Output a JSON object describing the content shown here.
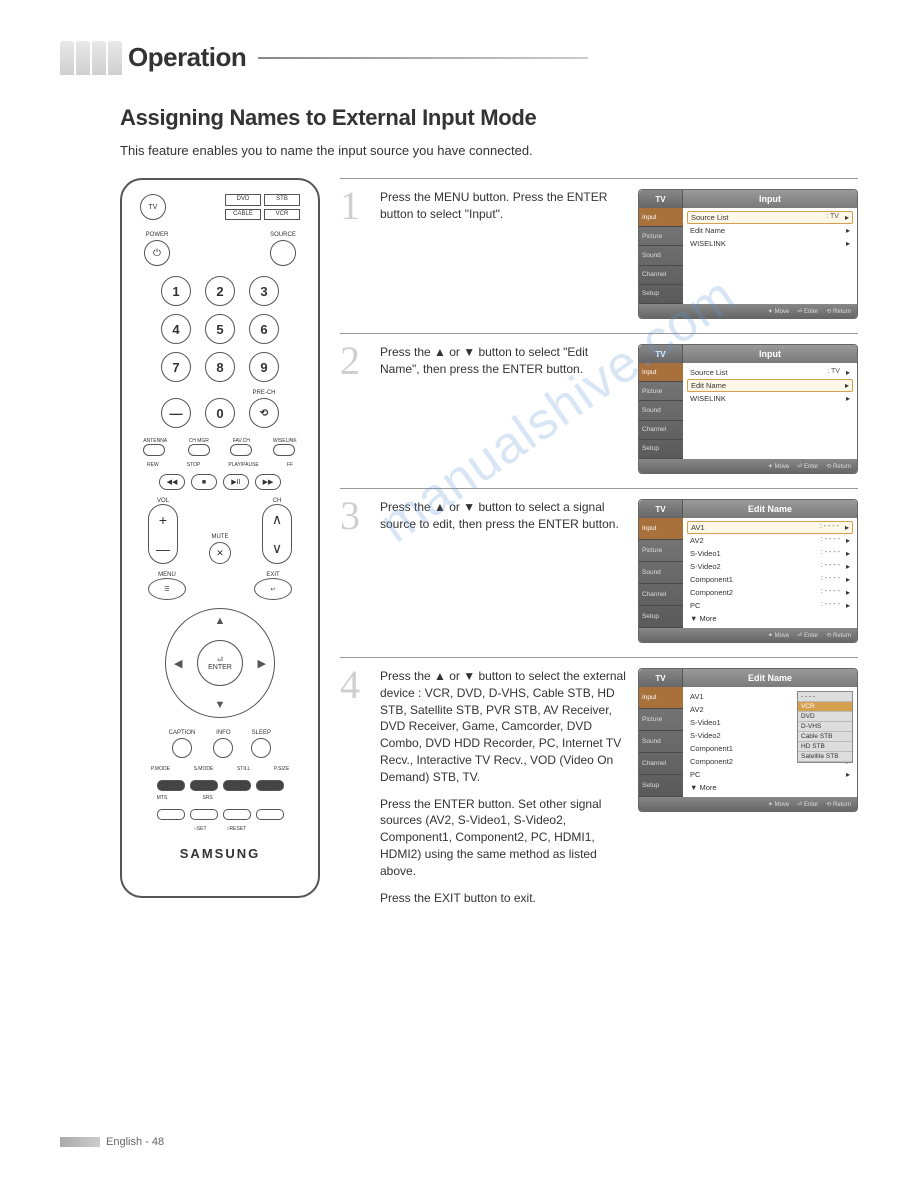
{
  "header": {
    "title": "Operation"
  },
  "subtitle": "Assigning Names to External Input Mode",
  "intro": "This feature enables you to name the input source you have connected.",
  "remote": {
    "tv": "TV",
    "labels": [
      "DVD",
      "STB",
      "CABLE",
      "VCR"
    ],
    "power_label": "POWER",
    "source_label": "SOURCE",
    "numbers": [
      "1",
      "2",
      "3",
      "4",
      "5",
      "6",
      "7",
      "8",
      "9"
    ],
    "dash": "—",
    "zero": "0",
    "prech_label": "PRE-CH",
    "tiny_labels": [
      "ANTENNA",
      "CH MGR",
      "FAV.CH",
      "WISELINK"
    ],
    "trans_labels": [
      "REW",
      "STOP",
      "PLAY/PAUSE",
      "FF"
    ],
    "trans_icons": [
      "◀◀",
      "■",
      "▶ⅠⅠ",
      "▶▶"
    ],
    "vol_label": "VOL",
    "ch_label": "CH",
    "mute_label": "MUTE",
    "menu": "MENU",
    "exit": "EXIT",
    "enter_symbol": "⏎",
    "enter": "ENTER",
    "cap_labels": [
      "CAPTION",
      "INFO",
      "SLEEP"
    ],
    "row_labels1": [
      "P.MODE",
      "S.MODE",
      "STILL",
      "P.SIZE"
    ],
    "row_labels2": [
      "MTS",
      "SRS",
      "",
      ""
    ],
    "set_label": "○SET",
    "reset_label": "○RESET",
    "brand": "SAMSUNG"
  },
  "steps": [
    {
      "num": "1",
      "text": "Press the MENU button. Press the ENTER button to select \"Input\".",
      "osd": {
        "title": "Input",
        "sidebar": [
          "Input",
          "Picture",
          "Sound",
          "Channel",
          "Setup"
        ],
        "active_side": 0,
        "rows": [
          {
            "label": "Source List",
            "value": ": TV",
            "sel": true
          },
          {
            "label": "Edit Name",
            "value": "",
            "sel": false
          },
          {
            "label": "WISELINK",
            "value": "",
            "sel": false
          }
        ],
        "footer": [
          "✦ Move",
          "⏎ Enter",
          "⟲ Return"
        ]
      }
    },
    {
      "num": "2",
      "text": "Press the ▲ or ▼ button to select \"Edit Name\", then press the ENTER button.",
      "osd": {
        "title": "Input",
        "sidebar": [
          "Input",
          "Picture",
          "Sound",
          "Channel",
          "Setup"
        ],
        "active_side": 0,
        "rows": [
          {
            "label": "Source List",
            "value": ": TV",
            "sel": false
          },
          {
            "label": "Edit Name",
            "value": "",
            "sel": true
          },
          {
            "label": "WISELINK",
            "value": "",
            "sel": false
          }
        ],
        "footer": [
          "✦ Move",
          "⏎ Enter",
          "⟲ Return"
        ]
      }
    },
    {
      "num": "3",
      "text": "Press the ▲ or ▼ button to select a signal source to edit, then press the ENTER button.",
      "osd": {
        "title": "Edit Name",
        "sidebar": [
          "Input",
          "Picture",
          "Sound",
          "Channel",
          "Setup"
        ],
        "active_side": 0,
        "rows": [
          {
            "label": "AV1",
            "value": ": - - - -",
            "sel": true
          },
          {
            "label": "AV2",
            "value": ": - - - -",
            "sel": false
          },
          {
            "label": "S-Video1",
            "value": ": - - - -",
            "sel": false
          },
          {
            "label": "S-Video2",
            "value": ": - - - -",
            "sel": false
          },
          {
            "label": "Component1",
            "value": ": - - - -",
            "sel": false
          },
          {
            "label": "Component2",
            "value": ": - - - -",
            "sel": false
          },
          {
            "label": "PC",
            "value": ": - - - -",
            "sel": false
          },
          {
            "label": "▼ More",
            "value": "",
            "sel": false
          }
        ],
        "footer": [
          "✦ Move",
          "⏎ Enter",
          "⟲ Return"
        ]
      }
    },
    {
      "num": "4",
      "text_parts": [
        "Press the ▲ or ▼ button to select the external device : VCR, DVD, D-VHS, Cable STB, HD STB, Satellite STB, PVR STB, AV Receiver, DVD Receiver, Game, Camcorder, DVD Combo, DVD HDD Recorder, PC, Internet TV Recv., Interactive TV Recv., VOD (Video On Demand) STB, TV.",
        "Press the ENTER button. Set other signal sources (AV2, S-Video1, S-Video2, Component1, Component2, PC, HDMI1, HDMI2) using the same method as listed above.",
        "Press the EXIT button to exit."
      ],
      "osd": {
        "title": "Edit Name",
        "sidebar": [
          "Input",
          "Picture",
          "Sound",
          "Channel",
          "Setup"
        ],
        "active_side": 0,
        "rows": [
          {
            "label": "AV1",
            "value": "",
            "sel": false
          },
          {
            "label": "AV2",
            "value": "",
            "sel": false
          },
          {
            "label": "S-Video1",
            "value": "",
            "sel": false
          },
          {
            "label": "S-Video2",
            "value": "",
            "sel": false
          },
          {
            "label": "Component1",
            "value": "",
            "sel": false
          },
          {
            "label": "Component2",
            "value": "",
            "sel": false
          },
          {
            "label": "PC",
            "value": "",
            "sel": false
          },
          {
            "label": "▼ More",
            "value": "",
            "sel": false
          }
        ],
        "popup": [
          "- - - -",
          "VCR",
          "DVD",
          "D-VHS",
          "Cable STB",
          "HD STB",
          "Satellite STB"
        ],
        "popup_sel": 1,
        "footer": [
          "✦ Move",
          "⏎ Enter",
          "⟲ Return"
        ]
      }
    }
  ],
  "watermark": "manualshive.com",
  "footer": "English - 48",
  "colors": {
    "step_num": "#cfcfcf",
    "osd_header": "#7a7a7a",
    "osd_accent": "#d4a050",
    "watermark": "rgba(100,150,210,0.25)"
  }
}
